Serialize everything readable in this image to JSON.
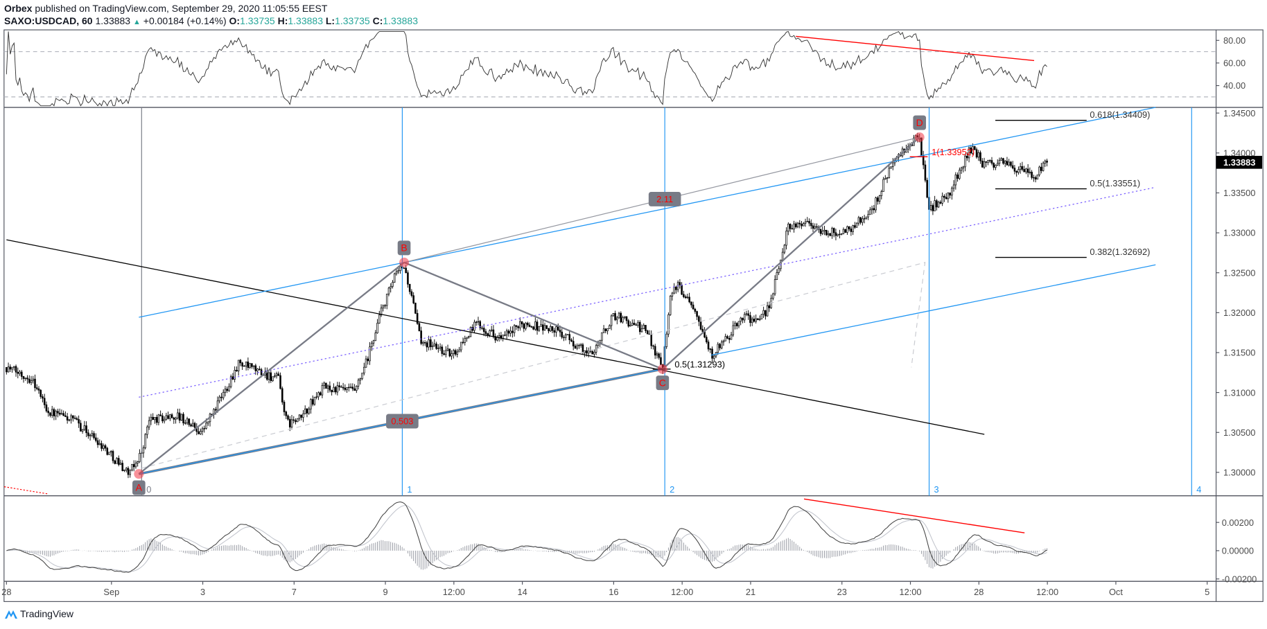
{
  "header": {
    "publisher": "Orbex",
    "published_text": "published on TradingView.com, September 29, 2020 11:05:55 EEST",
    "symbol": "SAXO:USDCAD, 60",
    "last": "1.33883",
    "change": "+0.00184 (+0.14%)",
    "o_label": "O:",
    "o": "1.33735",
    "h_label": "H:",
    "h": "1.33883",
    "l_label": "L:",
    "l": "1.33735",
    "c_label": "C:",
    "c": "1.33883"
  },
  "footer": {
    "logo_text": "TradingView"
  },
  "colors": {
    "up": "#ffffff",
    "down": "#000000",
    "blue": "#2196f3",
    "purple": "#7b61ff",
    "red": "#ff0000",
    "teal": "#26a69a",
    "pattern": "#787b86"
  },
  "chart_data": {
    "type": "candlestick",
    "symbol": "SAXO:USDCAD",
    "interval": "60",
    "x_unit": "trading days since Aug 28",
    "price_axis": {
      "ylim": [
        1.2975,
        1.3458
      ],
      "ticks": [
        "1.34500",
        "1.34000",
        "1.33500",
        "1.33000",
        "1.32500",
        "1.32000",
        "1.31500",
        "1.31000",
        "1.30500",
        "1.30000"
      ],
      "current_price": "1.33883"
    },
    "rsi_axis": {
      "ylim": [
        28,
        88
      ],
      "ticks": [
        "80.00",
        "60.00",
        "40.00"
      ],
      "bands": [
        70,
        30
      ]
    },
    "macd_axis": {
      "ylim": [
        -0.0026,
        0.0038
      ],
      "ticks": [
        "0.00200",
        "0.00000",
        "-0.00200"
      ]
    },
    "time_ticks": [
      {
        "label": "28",
        "t": 0
      },
      {
        "label": "Sep",
        "t": 2.3
      },
      {
        "label": "3",
        "t": 4.3
      },
      {
        "label": "7",
        "t": 6.3
      },
      {
        "label": "9",
        "t": 8.3
      },
      {
        "label": "12:00",
        "t": 9.8
      },
      {
        "label": "14",
        "t": 11.3
      },
      {
        "label": "16",
        "t": 13.3
      },
      {
        "label": "12:00",
        "t": 14.8
      },
      {
        "label": "21",
        "t": 16.3
      },
      {
        "label": "23",
        "t": 18.3
      },
      {
        "label": "12:00",
        "t": 19.8
      },
      {
        "label": "28",
        "t": 21.3
      },
      {
        "label": "12:00",
        "t": 22.8
      },
      {
        "label": "Oct",
        "t": 24.3
      },
      {
        "label": "5",
        "t": 26.3
      }
    ],
    "price_path": [
      [
        0,
        1.31315
      ],
      [
        0.57,
        1.31164
      ],
      [
        0.92,
        1.30759
      ],
      [
        1.45,
        1.30658
      ],
      [
        1.98,
        1.30405
      ],
      [
        2.69,
        1.2998
      ],
      [
        2.96,
        1.30254
      ],
      [
        3.13,
        1.30658
      ],
      [
        3.75,
        1.30709
      ],
      [
        4.28,
        1.30506
      ],
      [
        4.73,
        1.30962
      ],
      [
        5.08,
        1.31366
      ],
      [
        5.52,
        1.31265
      ],
      [
        5.96,
        1.31164
      ],
      [
        6.14,
        1.30608
      ],
      [
        6.41,
        1.30658
      ],
      [
        6.94,
        1.31063
      ],
      [
        7.65,
        1.31012
      ],
      [
        7.91,
        1.31417
      ],
      [
        8.18,
        1.31973
      ],
      [
        8.53,
        1.32478
      ],
      [
        8.71,
        1.32579
      ],
      [
        8.88,
        1.32175
      ],
      [
        9.06,
        1.31669
      ],
      [
        9.77,
        1.31467
      ],
      [
        10.3,
        1.31871
      ],
      [
        10.83,
        1.31669
      ],
      [
        11.36,
        1.31871
      ],
      [
        12.07,
        1.3177
      ],
      [
        12.78,
        1.31467
      ],
      [
        13.31,
        1.31973
      ],
      [
        14.02,
        1.3177
      ],
      [
        14.37,
        1.31315
      ],
      [
        14.55,
        1.32276
      ],
      [
        14.73,
        1.32326
      ],
      [
        15.08,
        1.32074
      ],
      [
        15.43,
        1.31467
      ],
      [
        15.79,
        1.31669
      ],
      [
        16.14,
        1.31973
      ],
      [
        16.5,
        1.31871
      ],
      [
        16.76,
        1.32175
      ],
      [
        17.12,
        1.33085
      ],
      [
        17.56,
        1.33135
      ],
      [
        17.91,
        1.32984
      ],
      [
        18.44,
        1.33034
      ],
      [
        18.97,
        1.33287
      ],
      [
        19.33,
        1.33792
      ],
      [
        19.77,
        1.34096
      ],
      [
        20.0,
        1.34197
      ],
      [
        20.21,
        1.33287
      ],
      [
        20.65,
        1.33489
      ],
      [
        21.01,
        1.33944
      ],
      [
        21.19,
        1.34096
      ],
      [
        21.36,
        1.33843
      ],
      [
        21.81,
        1.33893
      ],
      [
        22.16,
        1.33792
      ],
      [
        22.51,
        1.33691
      ],
      [
        22.8,
        1.33883
      ]
    ],
    "pattern": {
      "points": [
        {
          "label": "A",
          "t": 2.9,
          "p": 1.2998
        },
        {
          "label": "B",
          "t": 8.71,
          "p": 1.32629
        },
        {
          "label": "C",
          "t": 14.37,
          "p": 1.31293
        },
        {
          "label": "D",
          "t": 20.0,
          "p": 1.34197
        }
      ],
      "ratios": [
        {
          "label": "0.503",
          "on": "A-C"
        },
        {
          "label": "2.11",
          "on": "B-D"
        }
      ]
    },
    "trendline": [
      [
        0,
        1.32913
      ],
      [
        21.42,
        1.30476
      ]
    ],
    "channel": {
      "upper": [
        [
          2.9,
          1.31942
        ],
        [
          25.17,
          1.34571
        ]
      ],
      "middle": [
        [
          2.9,
          1.30941
        ],
        [
          25.17,
          1.3357
        ]
      ],
      "lower": [
        [
          15.43,
          1.31467
        ],
        [
          25.17,
          1.32599
        ]
      ]
    },
    "dashed_path": [
      [
        2.96,
        1.30052
      ],
      [
        20.12,
        1.32629
      ],
      [
        19.82,
        1.31315
      ]
    ],
    "cycle_lines": [
      {
        "label": "0",
        "t": 2.96
      },
      {
        "label": "1",
        "t": 8.67
      },
      {
        "label": "2",
        "t": 14.42
      },
      {
        "label": "3",
        "t": 20.21
      },
      {
        "label": "4",
        "t": 25.96
      }
    ],
    "fib_levels": [
      {
        "label": "0.618(1.34409)",
        "p": 1.34409
      },
      {
        "label": "0.5(1.33551)",
        "p": 1.33551
      },
      {
        "label": "0.382(1.32692)",
        "p": 1.32692
      }
    ],
    "fib_marks": [
      {
        "label": "1(1.33952)",
        "t": 20.0,
        "p": 1.33952,
        "color": "red"
      },
      {
        "label": "0.5(1.31293)",
        "t": 14.37,
        "p": 1.31293,
        "color": "black"
      }
    ],
    "rsi_divergence": [
      [
        17.29,
        83.6
      ],
      [
        22.51,
        62.1
      ]
    ],
    "macd_divergence": [
      [
        17.47,
        0.00366
      ],
      [
        22.3,
        0.00126
      ]
    ],
    "price_red_dotted": [
      [
        -0.05,
        1.2982
      ],
      [
        0.92,
        1.29729
      ]
    ]
  }
}
